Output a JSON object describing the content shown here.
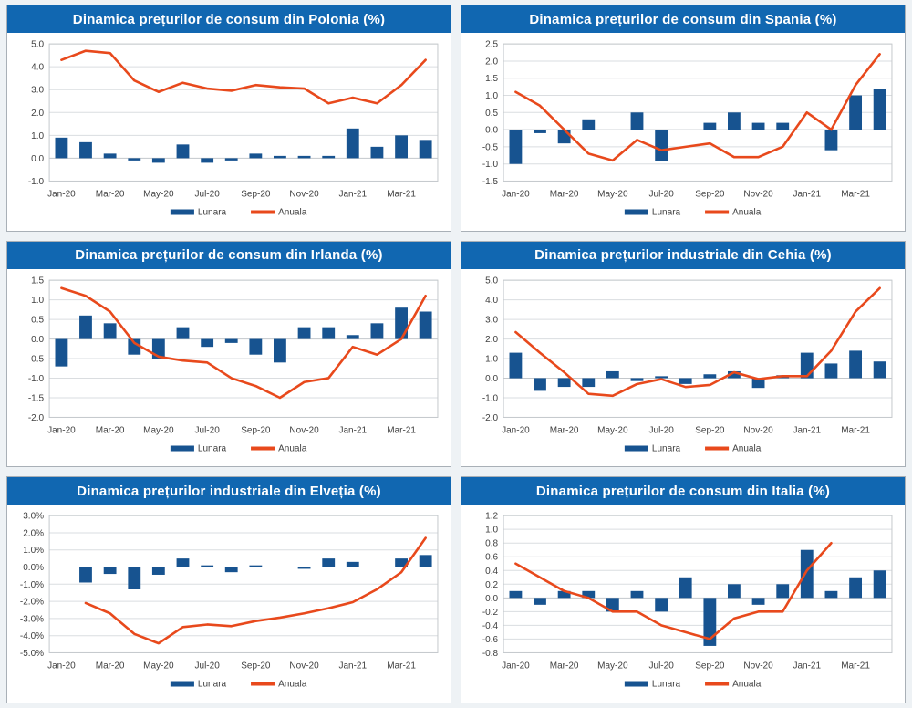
{
  "theme": {
    "page_background": "#eef2f5",
    "panel_background": "#ffffff",
    "panel_border": "#a9b0b7",
    "title_bg": "#1167b1",
    "title_text": "#ffffff",
    "bar_color": "#175390",
    "line_color": "#e8491c",
    "grid_color": "#dadde0",
    "zero_line_color": "#c3c7cb",
    "plot_border": "#c5c9cd",
    "axis_text_color": "#404040"
  },
  "legend": {
    "bar_label": "Lunara",
    "line_label": "Anuala"
  },
  "chart_data": [
    {
      "type": "bar+line",
      "title": "Dinamica prețurilor de consum din Polonia (%)",
      "categories": [
        "Jan-20",
        "Feb-20",
        "Mar-20",
        "Apr-20",
        "May-20",
        "Jun-20",
        "Jul-20",
        "Aug-20",
        "Sep-20",
        "Oct-20",
        "Nov-20",
        "Dec-20",
        "Jan-21",
        "Feb-21",
        "Mar-21",
        "Apr-21"
      ],
      "x_tick_every": 2,
      "ylim": [
        -1.0,
        5.0
      ],
      "ytick_step": 1.0,
      "ytick_suffix": "",
      "grid": true,
      "legend_position": "bottom",
      "series": [
        {
          "name": "Lunara",
          "type": "bar",
          "values": [
            0.9,
            0.7,
            0.2,
            -0.1,
            -0.2,
            0.6,
            -0.2,
            -0.1,
            0.2,
            0.1,
            0.1,
            0.1,
            1.3,
            0.5,
            1.0,
            0.8
          ]
        },
        {
          "name": "Anuala",
          "type": "line",
          "values": [
            4.3,
            4.7,
            4.6,
            3.4,
            2.9,
            3.3,
            3.05,
            2.95,
            3.2,
            3.1,
            3.05,
            2.4,
            2.65,
            2.4,
            3.2,
            4.3
          ]
        }
      ]
    },
    {
      "type": "bar+line",
      "title": "Dinamica prețurilor de consum din Spania (%)",
      "categories": [
        "Jan-20",
        "Feb-20",
        "Mar-20",
        "Apr-20",
        "May-20",
        "Jun-20",
        "Jul-20",
        "Aug-20",
        "Sep-20",
        "Oct-20",
        "Nov-20",
        "Dec-20",
        "Jan-21",
        "Feb-21",
        "Mar-21",
        "Apr-21"
      ],
      "x_tick_every": 2,
      "ylim": [
        -1.5,
        2.5
      ],
      "ytick_step": 0.5,
      "ytick_suffix": "",
      "grid": true,
      "legend_position": "bottom",
      "series": [
        {
          "name": "Lunara",
          "type": "bar",
          "values": [
            -1.0,
            -0.1,
            -0.4,
            0.3,
            0,
            0.5,
            -0.9,
            0,
            0.2,
            0.5,
            0.2,
            0.2,
            0,
            -0.6,
            1.0,
            1.2
          ]
        },
        {
          "name": "Anuala",
          "type": "line",
          "values": [
            1.1,
            0.7,
            0.0,
            -0.7,
            -0.9,
            -0.3,
            -0.6,
            -0.5,
            -0.4,
            -0.8,
            -0.8,
            -0.5,
            0.5,
            0.0,
            1.3,
            2.2
          ]
        }
      ]
    },
    {
      "type": "bar+line",
      "title": "Dinamica prețurilor de consum din Irlanda (%)",
      "categories": [
        "Jan-20",
        "Feb-20",
        "Mar-20",
        "Apr-20",
        "May-20",
        "Jun-20",
        "Jul-20",
        "Aug-20",
        "Sep-20",
        "Oct-20",
        "Nov-20",
        "Dec-20",
        "Jan-21",
        "Feb-21",
        "Mar-21",
        "Apr-21"
      ],
      "x_tick_every": 2,
      "ylim": [
        -2.0,
        1.5
      ],
      "ytick_step": 0.5,
      "ytick_suffix": "",
      "grid": true,
      "legend_position": "bottom",
      "series": [
        {
          "name": "Lunara",
          "type": "bar",
          "values": [
            -0.7,
            0.6,
            0.4,
            -0.4,
            -0.5,
            0.3,
            -0.2,
            -0.1,
            -0.4,
            -0.6,
            0.3,
            0.3,
            0.1,
            0.4,
            0.8,
            0.7
          ]
        },
        {
          "name": "Anuala",
          "type": "line",
          "values": [
            1.3,
            1.1,
            0.7,
            -0.1,
            -0.45,
            -0.55,
            -0.6,
            -1.0,
            -1.2,
            -1.5,
            -1.1,
            -1.0,
            -0.2,
            -0.4,
            0.0,
            1.1
          ]
        }
      ]
    },
    {
      "type": "bar+line",
      "title": "Dinamica prețurilor industriale din Cehia (%)",
      "categories": [
        "Jan-20",
        "Feb-20",
        "Mar-20",
        "Apr-20",
        "May-20",
        "Jun-20",
        "Jul-20",
        "Aug-20",
        "Sep-20",
        "Oct-20",
        "Nov-20",
        "Dec-20",
        "Jan-21",
        "Feb-21",
        "Mar-21",
        "Apr-21"
      ],
      "x_tick_every": 2,
      "ylim": [
        -2.0,
        5.0
      ],
      "ytick_step": 1.0,
      "ytick_suffix": "",
      "grid": true,
      "legend_position": "bottom",
      "series": [
        {
          "name": "Lunara",
          "type": "bar",
          "values": [
            1.3,
            -0.65,
            -0.45,
            -0.45,
            0.35,
            -0.15,
            0.1,
            -0.3,
            0.2,
            0.35,
            -0.5,
            0.15,
            1.3,
            0.75,
            1.4,
            0.85
          ]
        },
        {
          "name": "Anuala",
          "type": "line",
          "values": [
            2.35,
            1.3,
            0.3,
            -0.8,
            -0.9,
            -0.3,
            -0.05,
            -0.45,
            -0.35,
            0.3,
            -0.05,
            0.1,
            0.1,
            1.4,
            3.4,
            4.6
          ]
        }
      ]
    },
    {
      "type": "bar+line",
      "title": "Dinamica prețurilor industriale din Elveția (%)",
      "categories": [
        "Jan-20",
        "Feb-20",
        "Mar-20",
        "Apr-20",
        "May-20",
        "Jun-20",
        "Jul-20",
        "Aug-20",
        "Sep-20",
        "Oct-20",
        "Nov-20",
        "Dec-20",
        "Jan-21",
        "Feb-21",
        "Mar-21",
        "Apr-21"
      ],
      "x_tick_every": 2,
      "ylim": [
        -5.0,
        3.0
      ],
      "ytick_step": 1.0,
      "ytick_suffix": "%",
      "grid": true,
      "legend_position": "bottom",
      "series": [
        {
          "name": "Lunara",
          "type": "bar",
          "values": [
            null,
            -0.9,
            -0.4,
            -1.3,
            -0.45,
            0.5,
            0.1,
            -0.3,
            0.1,
            null,
            -0.1,
            0.5,
            0.3,
            null,
            0.5,
            0.7
          ]
        },
        {
          "name": "Anuala",
          "type": "line",
          "values": [
            null,
            -2.1,
            -2.7,
            -3.9,
            -4.45,
            -3.5,
            -3.35,
            -3.45,
            -3.15,
            -2.95,
            -2.7,
            -2.4,
            -2.05,
            -1.3,
            -0.3,
            1.7
          ]
        }
      ]
    },
    {
      "type": "bar+line",
      "title": "Dinamica prețurilor de consum din Italia (%)",
      "categories": [
        "Jan-20",
        "Feb-20",
        "Mar-20",
        "Apr-20",
        "May-20",
        "Jun-20",
        "Jul-20",
        "Aug-20",
        "Sep-20",
        "Oct-20",
        "Nov-20",
        "Dec-20",
        "Jan-21",
        "Feb-21",
        "Mar-21",
        "Apr-21"
      ],
      "x_tick_every": 2,
      "ylim": [
        -0.8,
        1.2
      ],
      "ytick_step": 0.2,
      "ytick_suffix": "",
      "grid": true,
      "legend_position": "bottom",
      "series": [
        {
          "name": "Lunara",
          "type": "bar",
          "values": [
            0.1,
            -0.1,
            0.1,
            0.1,
            -0.2,
            0.1,
            -0.2,
            0.3,
            -0.7,
            0.2,
            -0.1,
            0.2,
            0.7,
            0.1,
            0.3,
            0.4
          ]
        },
        {
          "name": "Anuala",
          "type": "line",
          "values": [
            0.5,
            0.3,
            0.1,
            0.0,
            -0.2,
            -0.2,
            -0.4,
            -0.5,
            -0.6,
            -0.3,
            -0.2,
            -0.2,
            0.4,
            0.8,
            null,
            null
          ]
        }
      ]
    }
  ]
}
